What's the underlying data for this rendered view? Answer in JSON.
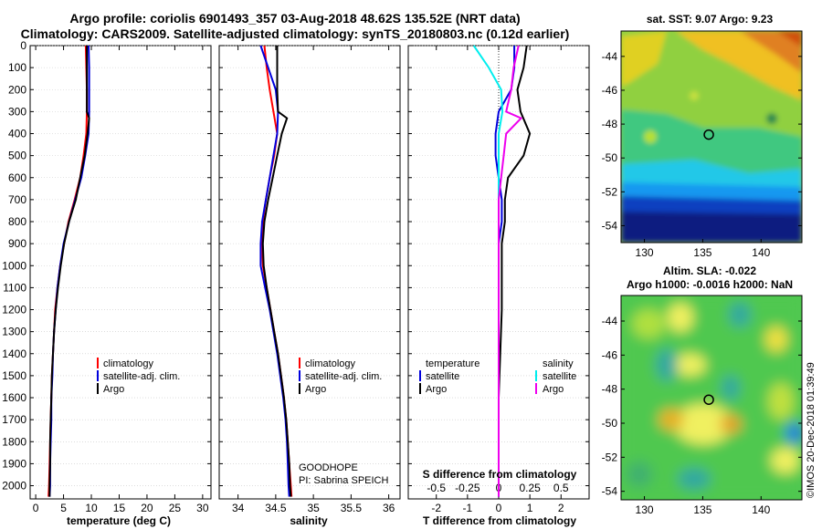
{
  "header": {
    "title_line1": "Argo profile: coriolis 6901493_357 03-Aug-2018 48.62S 135.52E (NRT data)",
    "title_line2": "Climatology: CARS2009. Satellite-adjusted climatology: synTS_20180803.nc (0.12d earlier)"
  },
  "credit": {
    "project": "GOODHOPE",
    "pi": "PI: Sabrina SPEICH",
    "stamp": "©IMOS 20-Dec-2018 01:39:49"
  },
  "colors": {
    "climatology": "#ff0000",
    "satellite": "#0000dd",
    "argo": "#000000",
    "sal_satellite": "#00eeee",
    "sal_argo": "#ee00ee"
  },
  "chart_data": [
    {
      "id": "temp",
      "type": "line",
      "xlabel": "temperature (deg C)",
      "xlim": [
        -1,
        31.5
      ],
      "xticks": [
        0,
        5,
        10,
        15,
        20,
        25,
        30
      ],
      "xtick_labels": [
        "0",
        "5",
        "10",
        "15",
        "20",
        "25",
        "30"
      ],
      "ylim": [
        2060,
        0
      ],
      "yticks": [
        0,
        100,
        200,
        300,
        400,
        500,
        600,
        700,
        800,
        900,
        1000,
        1100,
        1200,
        1300,
        1400,
        1500,
        1600,
        1700,
        1800,
        1900,
        2000
      ],
      "legend": [
        "climatology",
        "satellite-adj. clim.",
        "Argo"
      ],
      "series": [
        {
          "name": "climatology",
          "color": "#ff0000",
          "points": [
            [
              9.0,
              0
            ],
            [
              9.1,
              100
            ],
            [
              9.2,
              200
            ],
            [
              9.2,
              300
            ],
            [
              9.1,
              400
            ],
            [
              8.6,
              500
            ],
            [
              8.0,
              600
            ],
            [
              7.0,
              700
            ],
            [
              5.9,
              800
            ],
            [
              5.1,
              900
            ],
            [
              4.4,
              1000
            ],
            [
              3.9,
              1100
            ],
            [
              3.5,
              1200
            ],
            [
              3.3,
              1300
            ],
            [
              3.1,
              1400
            ],
            [
              2.9,
              1500
            ],
            [
              2.8,
              1600
            ],
            [
              2.7,
              1700
            ],
            [
              2.6,
              1800
            ],
            [
              2.5,
              1900
            ],
            [
              2.4,
              2000
            ],
            [
              2.3,
              2050
            ]
          ]
        },
        {
          "name": "satellite-adj. clim.",
          "color": "#0000dd",
          "points": [
            [
              9.5,
              0
            ],
            [
              9.6,
              100
            ],
            [
              9.6,
              200
            ],
            [
              9.6,
              300
            ],
            [
              9.5,
              400
            ],
            [
              8.9,
              500
            ],
            [
              8.2,
              600
            ],
            [
              7.1,
              700
            ],
            [
              6.0,
              800
            ],
            [
              5.0,
              900
            ],
            [
              4.4,
              1000
            ],
            [
              3.9,
              1100
            ],
            [
              3.6,
              1200
            ],
            [
              3.3,
              1300
            ],
            [
              3.1,
              1400
            ],
            [
              3.0,
              1500
            ],
            [
              2.8,
              1600
            ],
            [
              2.8,
              1700
            ],
            [
              2.7,
              1800
            ],
            [
              2.6,
              1900
            ],
            [
              2.6,
              2000
            ],
            [
              2.5,
              2050
            ]
          ]
        },
        {
          "name": "Argo",
          "color": "#000000",
          "points": [
            [
              9.2,
              0
            ],
            [
              9.2,
              100
            ],
            [
              9.2,
              200
            ],
            [
              9.2,
              300
            ],
            [
              9.6,
              330
            ],
            [
              9.3,
              400
            ],
            [
              8.8,
              500
            ],
            [
              8.0,
              600
            ],
            [
              7.2,
              700
            ],
            [
              6.0,
              800
            ],
            [
              5.1,
              900
            ],
            [
              4.5,
              1000
            ],
            [
              4.0,
              1100
            ],
            [
              3.6,
              1200
            ],
            [
              3.3,
              1300
            ],
            [
              3.1,
              1400
            ],
            [
              2.9,
              1500
            ],
            [
              2.8,
              1600
            ],
            [
              2.7,
              1700
            ],
            [
              2.6,
              1800
            ],
            [
              2.6,
              1900
            ],
            [
              2.5,
              2000
            ],
            [
              2.5,
              2050
            ]
          ]
        }
      ]
    },
    {
      "id": "sal",
      "type": "line",
      "xlabel": "salinity",
      "xlim": [
        33.75,
        36.15
      ],
      "xticks": [
        34,
        34.5,
        35,
        35.5,
        36
      ],
      "xtick_labels": [
        "34",
        "34.5",
        "35",
        "35.5",
        "36"
      ],
      "ylim": [
        2060,
        0
      ],
      "legend": [
        "climatology",
        "satellite-adj. clim.",
        "Argo"
      ],
      "series": [
        {
          "name": "climatology",
          "color": "#ff0000",
          "points": [
            [
              34.35,
              0
            ],
            [
              34.38,
              100
            ],
            [
              34.42,
              200
            ],
            [
              34.47,
              300
            ],
            [
              34.52,
              400
            ],
            [
              34.48,
              500
            ],
            [
              34.42,
              600
            ],
            [
              34.37,
              700
            ],
            [
              34.33,
              800
            ],
            [
              34.32,
              900
            ],
            [
              34.33,
              1000
            ],
            [
              34.38,
              1100
            ],
            [
              34.43,
              1200
            ],
            [
              34.48,
              1300
            ],
            [
              34.53,
              1400
            ],
            [
              34.57,
              1500
            ],
            [
              34.61,
              1600
            ],
            [
              34.64,
              1700
            ],
            [
              34.66,
              1800
            ],
            [
              34.68,
              1900
            ],
            [
              34.7,
              2000
            ],
            [
              34.71,
              2050
            ]
          ]
        },
        {
          "name": "satellite-adj. clim.",
          "color": "#0000dd",
          "points": [
            [
              34.3,
              0
            ],
            [
              34.4,
              100
            ],
            [
              34.5,
              200
            ],
            [
              34.53,
              300
            ],
            [
              34.52,
              400
            ],
            [
              34.47,
              500
            ],
            [
              34.42,
              600
            ],
            [
              34.37,
              700
            ],
            [
              34.32,
              800
            ],
            [
              34.3,
              900
            ],
            [
              34.3,
              1000
            ],
            [
              34.36,
              1100
            ],
            [
              34.42,
              1200
            ],
            [
              34.47,
              1300
            ],
            [
              34.52,
              1400
            ],
            [
              34.56,
              1500
            ],
            [
              34.6,
              1600
            ],
            [
              34.63,
              1700
            ],
            [
              34.65,
              1800
            ],
            [
              34.66,
              1900
            ],
            [
              34.67,
              2000
            ],
            [
              34.68,
              2050
            ]
          ]
        },
        {
          "name": "Argo",
          "color": "#000000",
          "points": [
            [
              34.52,
              0
            ],
            [
              34.52,
              100
            ],
            [
              34.52,
              200
            ],
            [
              34.53,
              300
            ],
            [
              34.65,
              330
            ],
            [
              34.58,
              400
            ],
            [
              34.52,
              500
            ],
            [
              34.46,
              600
            ],
            [
              34.4,
              700
            ],
            [
              34.35,
              800
            ],
            [
              34.33,
              900
            ],
            [
              34.34,
              1000
            ],
            [
              34.38,
              1100
            ],
            [
              34.43,
              1200
            ],
            [
              34.48,
              1300
            ],
            [
              34.53,
              1400
            ],
            [
              34.57,
              1500
            ],
            [
              34.61,
              1600
            ],
            [
              34.64,
              1700
            ],
            [
              34.66,
              1800
            ],
            [
              34.68,
              1900
            ],
            [
              34.69,
              2000
            ],
            [
              34.7,
              2050
            ]
          ]
        }
      ]
    },
    {
      "id": "diff",
      "type": "line",
      "xlabel": "T difference from climatology",
      "xlabel_top": "S difference from climatology",
      "xlim": [
        -2.9,
        2.9
      ],
      "xticks": [
        -2,
        -1,
        0,
        1,
        2
      ],
      "xtick_labels": [
        "-2",
        "-1",
        "0",
        "1",
        "2"
      ],
      "s_ticks": [
        -0.5,
        -0.25,
        0,
        0.25,
        0.5
      ],
      "s_tick_labels": [
        "-0.5",
        "-0.25",
        "0",
        "0.25",
        "0.5"
      ],
      "ylim": [
        2060,
        0
      ],
      "legend_temperature": {
        "title": "temperature",
        "items": [
          "satellite",
          "Argo"
        ]
      },
      "legend_salinity": {
        "title": "salinity",
        "items": [
          "satellite",
          "Argo"
        ]
      },
      "series": [
        {
          "name": "T satellite",
          "color": "#0000dd",
          "points": [
            [
              0.5,
              0
            ],
            [
              0.5,
              100
            ],
            [
              0.4,
              200
            ],
            [
              0.0,
              300
            ],
            [
              -0.1,
              400
            ],
            [
              -0.1,
              500
            ],
            [
              0.0,
              600
            ],
            [
              0.1,
              700
            ],
            [
              0.1,
              800
            ],
            [
              0.0,
              900
            ],
            [
              0.0,
              1000
            ],
            [
              0.0,
              1200
            ],
            [
              0.0,
              1600
            ],
            [
              0.0,
              2050
            ]
          ]
        },
        {
          "name": "T Argo",
          "color": "#000000",
          "points": [
            [
              0.9,
              0
            ],
            [
              0.8,
              100
            ],
            [
              0.6,
              200
            ],
            [
              0.7,
              300
            ],
            [
              1.0,
              400
            ],
            [
              0.8,
              500
            ],
            [
              0.3,
              600
            ],
            [
              0.2,
              700
            ],
            [
              0.2,
              800
            ],
            [
              0.1,
              900
            ],
            [
              0.1,
              1000
            ],
            [
              0.1,
              1200
            ],
            [
              0.0,
              1600
            ],
            [
              0.0,
              2050
            ]
          ]
        },
        {
          "name": "S satellite",
          "color": "#00eeee",
          "points": [
            [
              -0.2,
              0
            ],
            [
              -0.08,
              100
            ],
            [
              0.02,
              200
            ],
            [
              0.03,
              300
            ],
            [
              0.0,
              400
            ],
            [
              0.0,
              500
            ],
            [
              0.0,
              600
            ],
            [
              0.0,
              700
            ],
            [
              0.0,
              800
            ],
            [
              0.0,
              1000
            ],
            [
              0.0,
              1400
            ],
            [
              0.0,
              2050
            ]
          ]
        },
        {
          "name": "S Argo",
          "color": "#ee00ee",
          "points": [
            [
              0.16,
              0
            ],
            [
              0.12,
              100
            ],
            [
              0.1,
              200
            ],
            [
              0.06,
              300
            ],
            [
              0.18,
              330
            ],
            [
              0.06,
              400
            ],
            [
              0.04,
              500
            ],
            [
              0.02,
              600
            ],
            [
              0.0,
              700
            ],
            [
              0.0,
              800
            ],
            [
              0.0,
              1000
            ],
            [
              0.0,
              2050
            ]
          ]
        }
      ]
    },
    {
      "id": "sst_map",
      "type": "heatmap",
      "title": "sat. SST: 9.07 Argo: 9.23",
      "xlim": [
        128,
        143.5
      ],
      "ylim": [
        -55,
        -42.5
      ],
      "xticks": [
        130,
        135,
        140
      ],
      "yticks": [
        -44,
        -46,
        -48,
        -50,
        -52,
        -54
      ],
      "marker": {
        "lon": 135.52,
        "lat": -48.62
      }
    },
    {
      "id": "sla_map",
      "type": "heatmap",
      "title": "Altim. SLA: -0.022",
      "subtitle": "Argo h1000: -0.0016 h2000: NaN",
      "xlim": [
        128,
        143.5
      ],
      "ylim": [
        -54.5,
        -42.5
      ],
      "xticks": [
        130,
        135,
        140
      ],
      "yticks": [
        -44,
        -46,
        -48,
        -50,
        -52,
        -54
      ],
      "marker": {
        "lon": 135.52,
        "lat": -48.62
      }
    }
  ]
}
